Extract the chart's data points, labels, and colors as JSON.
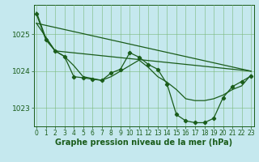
{
  "background_color": "#c5e8ee",
  "plot_bg_color": "#c5e8ee",
  "grid_color": "#7ab87a",
  "line_color": "#1a5c1a",
  "marker_color": "#1a5c1a",
  "xlabel": "Graphe pression niveau de la mer (hPa)",
  "xlabel_fontsize": 7,
  "xlabel_color": "#1a5c1a",
  "tick_color": "#1a5c1a",
  "ytick_fontsize": 6.5,
  "xtick_fontsize": 5.5,
  "ylim": [
    1022.5,
    1025.8
  ],
  "xlim": [
    -0.3,
    23.3
  ],
  "yticks": [
    1023,
    1024,
    1025
  ],
  "xticks": [
    0,
    1,
    2,
    3,
    4,
    5,
    6,
    7,
    8,
    9,
    10,
    11,
    12,
    13,
    14,
    15,
    16,
    17,
    18,
    19,
    20,
    21,
    22,
    23
  ],
  "series": [
    {
      "x": [
        0,
        23
      ],
      "y": [
        1025.3,
        1024.0
      ],
      "linewidth": 0.9,
      "has_markers": false,
      "linestyle": "-"
    },
    {
      "x": [
        0,
        2,
        23
      ],
      "y": [
        1025.3,
        1024.55,
        1024.0
      ],
      "linewidth": 0.9,
      "has_markers": false,
      "linestyle": "-"
    },
    {
      "x": [
        0,
        1,
        2,
        3,
        4,
        5,
        6,
        7,
        8,
        9,
        10,
        11,
        12,
        13,
        14,
        15,
        16,
        17,
        18,
        19,
        20,
        21,
        22,
        23
      ],
      "y": [
        1025.6,
        1024.9,
        1024.55,
        1024.4,
        1024.15,
        1023.85,
        1023.8,
        1023.75,
        1023.85,
        1024.0,
        1024.15,
        1024.3,
        1024.1,
        1023.85,
        1023.7,
        1023.5,
        1023.25,
        1023.2,
        1023.2,
        1023.25,
        1023.35,
        1023.5,
        1023.6,
        1023.9
      ],
      "linewidth": 0.9,
      "has_markers": false,
      "linestyle": "-"
    },
    {
      "x": [
        0,
        1,
        2,
        3,
        4,
        5,
        6,
        7,
        8,
        9,
        10,
        11,
        12,
        13,
        14,
        15,
        16,
        17,
        18,
        19,
        20,
        21,
        22,
        23
      ],
      "y": [
        1025.55,
        1024.85,
        1024.55,
        1024.4,
        1023.85,
        1023.82,
        1023.78,
        1023.75,
        1023.95,
        1024.05,
        1024.5,
        1024.38,
        1024.18,
        1024.05,
        1023.65,
        1022.82,
        1022.65,
        1022.6,
        1022.6,
        1022.72,
        1023.28,
        1023.58,
        1023.72,
        1023.87
      ],
      "linewidth": 0.9,
      "has_markers": true,
      "marker": "P",
      "markersize": 3,
      "linestyle": "-"
    }
  ]
}
